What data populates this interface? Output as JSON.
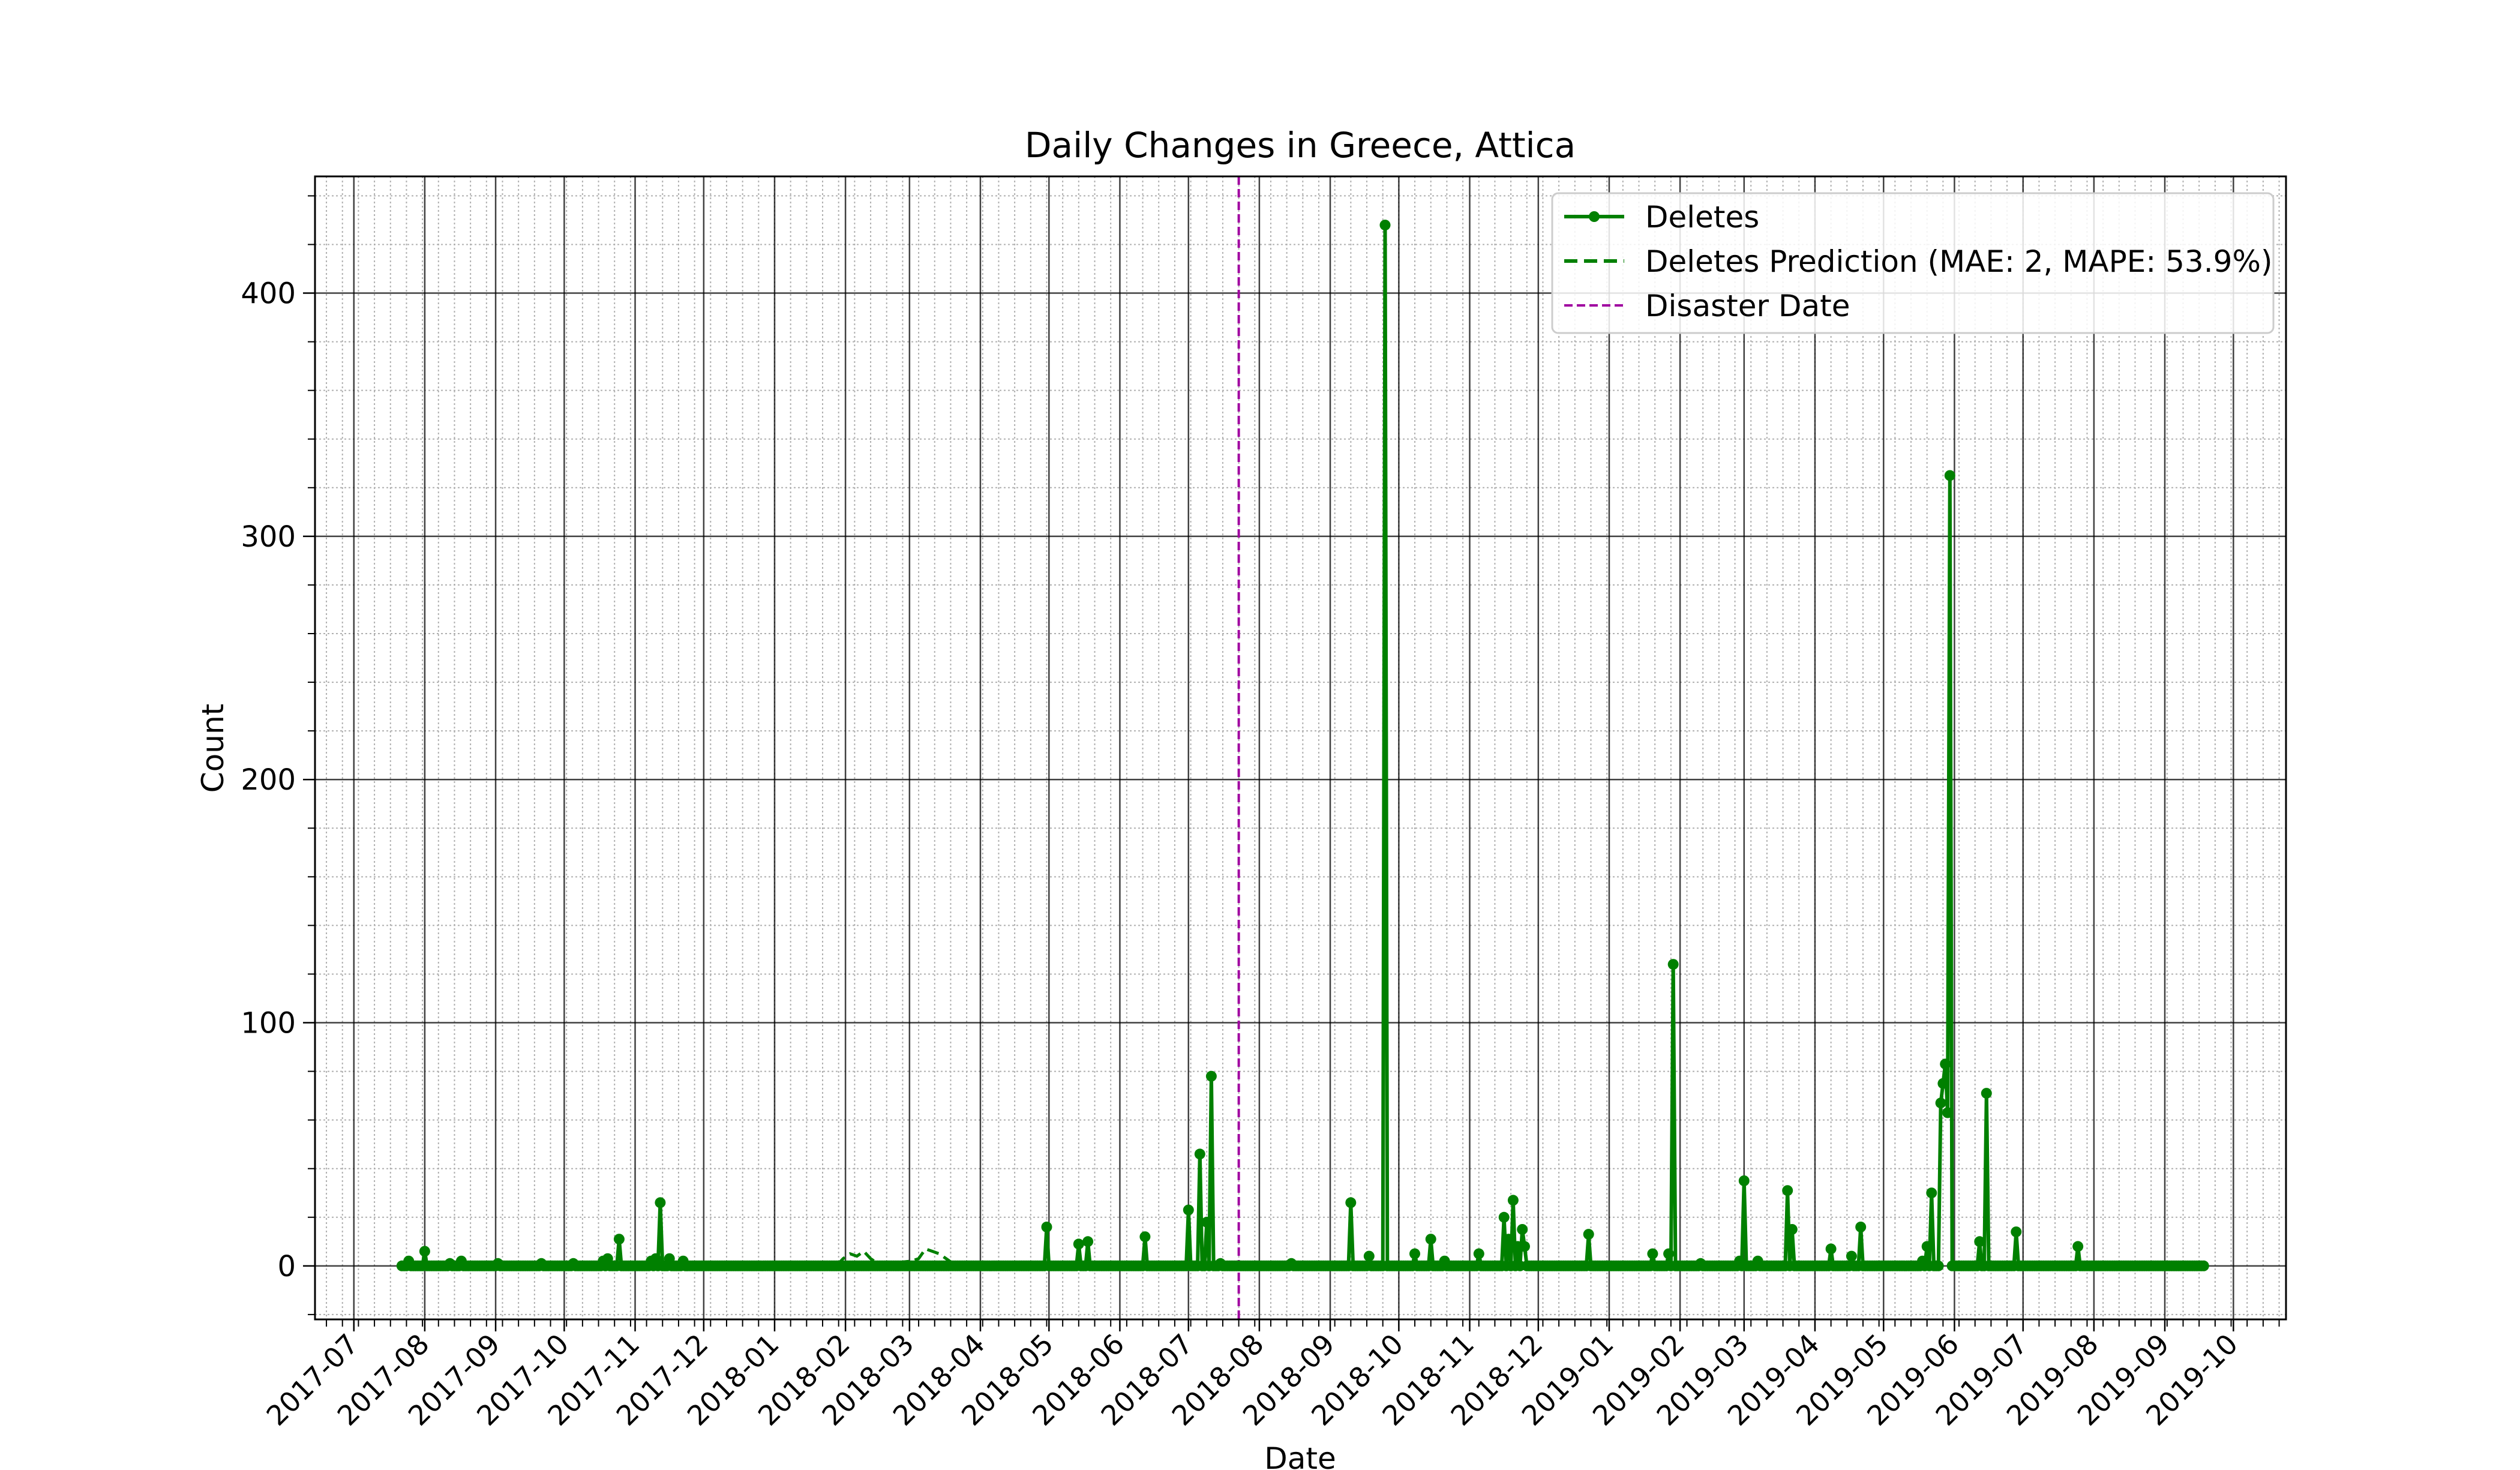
{
  "chart_data": {
    "type": "line",
    "title": "Daily Changes in Greece, Attica",
    "xlabel": "Date",
    "ylabel": "Count",
    "xlim": [
      "2017-06-14",
      "2019-10-24"
    ],
    "ylim": [
      -22,
      448
    ],
    "x_ticks": [
      "2017-07",
      "2017-08",
      "2017-09",
      "2017-10",
      "2017-11",
      "2017-12",
      "2018-01",
      "2018-02",
      "2018-03",
      "2018-04",
      "2018-05",
      "2018-06",
      "2018-07",
      "2018-08",
      "2018-09",
      "2018-10",
      "2018-11",
      "2018-12",
      "2019-01",
      "2019-02",
      "2019-03",
      "2019-04",
      "2019-05",
      "2019-06",
      "2019-07",
      "2019-08",
      "2019-09",
      "2019-10"
    ],
    "y_ticks": [
      0,
      100,
      200,
      300,
      400
    ],
    "grid": true,
    "legend_position": "top-right",
    "series": [
      {
        "name": "Deletes",
        "style": "solid-marker",
        "color": "#008000",
        "range": [
          "2017-07-22",
          "2019-09-18"
        ],
        "baseline": 0,
        "points": [
          [
            "2017-07-25",
            2
          ],
          [
            "2017-08-01",
            6
          ],
          [
            "2017-08-12",
            1
          ],
          [
            "2017-08-17",
            2
          ],
          [
            "2017-09-02",
            1
          ],
          [
            "2017-09-21",
            1
          ],
          [
            "2017-10-05",
            1
          ],
          [
            "2017-10-18",
            2
          ],
          [
            "2017-10-20",
            3
          ],
          [
            "2017-10-25",
            11
          ],
          [
            "2017-11-08",
            2
          ],
          [
            "2017-11-10",
            3
          ],
          [
            "2017-11-12",
            26
          ],
          [
            "2017-11-16",
            3
          ],
          [
            "2017-11-22",
            2
          ],
          [
            "2018-04-30",
            16
          ],
          [
            "2018-05-14",
            9
          ],
          [
            "2018-05-18",
            10
          ],
          [
            "2018-06-12",
            12
          ],
          [
            "2018-07-01",
            23
          ],
          [
            "2018-07-06",
            46
          ],
          [
            "2018-07-09",
            18
          ],
          [
            "2018-07-11",
            78
          ],
          [
            "2018-07-15",
            1
          ],
          [
            "2018-08-15",
            1
          ],
          [
            "2018-09-10",
            26
          ],
          [
            "2018-09-18",
            4
          ],
          [
            "2018-09-25",
            428
          ],
          [
            "2018-10-08",
            5
          ],
          [
            "2018-10-15",
            11
          ],
          [
            "2018-10-21",
            2
          ],
          [
            "2018-11-05",
            5
          ],
          [
            "2018-11-16",
            20
          ],
          [
            "2018-11-18",
            11
          ],
          [
            "2018-11-20",
            27
          ],
          [
            "2018-11-22",
            8
          ],
          [
            "2018-11-24",
            15
          ],
          [
            "2018-11-25",
            8
          ],
          [
            "2018-12-23",
            13
          ],
          [
            "2019-01-20",
            5
          ],
          [
            "2019-01-27",
            5
          ],
          [
            "2019-01-29",
            124
          ],
          [
            "2019-02-10",
            1
          ],
          [
            "2019-02-27",
            2
          ],
          [
            "2019-03-01",
            35
          ],
          [
            "2019-03-07",
            2
          ],
          [
            "2019-03-20",
            31
          ],
          [
            "2019-03-22",
            15
          ],
          [
            "2019-04-08",
            7
          ],
          [
            "2019-04-17",
            4
          ],
          [
            "2019-04-21",
            16
          ],
          [
            "2019-05-18",
            2
          ],
          [
            "2019-05-20",
            8
          ],
          [
            "2019-05-22",
            30
          ],
          [
            "2019-05-26",
            67
          ],
          [
            "2019-05-27",
            75
          ],
          [
            "2019-05-28",
            83
          ],
          [
            "2019-05-29",
            63
          ],
          [
            "2019-05-30",
            325
          ],
          [
            "2019-06-12",
            10
          ],
          [
            "2019-06-15",
            71
          ],
          [
            "2019-06-28",
            14
          ],
          [
            "2019-07-25",
            8
          ]
        ]
      },
      {
        "name": "Deletes Prediction (MAE: 2, MAPE: 53.9%)",
        "style": "dashed",
        "color": "#008000",
        "points": [
          [
            "2018-01-28",
            0
          ],
          [
            "2018-01-31",
            3
          ],
          [
            "2018-02-03",
            5
          ],
          [
            "2018-02-06",
            4
          ],
          [
            "2018-02-09",
            6
          ],
          [
            "2018-02-12",
            3
          ],
          [
            "2018-02-15",
            1
          ],
          [
            "2018-02-20",
            1
          ],
          [
            "2018-03-02",
            2
          ],
          [
            "2018-03-05",
            3
          ],
          [
            "2018-03-08",
            7
          ],
          [
            "2018-03-11",
            6
          ],
          [
            "2018-03-14",
            5
          ],
          [
            "2018-03-17",
            3
          ],
          [
            "2018-03-20",
            1
          ]
        ]
      },
      {
        "name": "Disaster Date",
        "style": "vline-dashed",
        "color": "#a000a0",
        "x": "2018-07-23"
      }
    ]
  }
}
